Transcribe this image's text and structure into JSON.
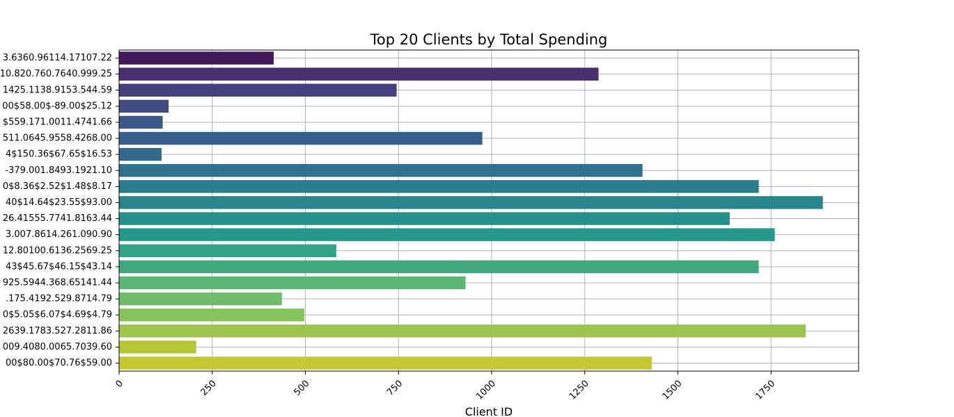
{
  "chart_data": {
    "type": "bar",
    "orientation": "horizontal",
    "title": "Top 20 Clients by Total Spending",
    "xlabel": "Client ID",
    "ylabel": "",
    "xlim": [
      0,
      1985
    ],
    "x_ticks": [
      "0",
      "250",
      "500",
      "750",
      "1000",
      "1250",
      "1500",
      "1750"
    ],
    "grid": true,
    "palette": "viridis",
    "categories": [
      "3.6360.96114.17107.22",
      "10.820.760.7640.999.25",
      "1425.1138.9153.544.59",
      "00$58.00$-89.00$25.12",
      "$559.171.0011.4741.66",
      "511.0645.9558.4268.00",
      "4$150.36$67.65$16.53",
      "-379.001.8493.1921.10",
      "0$8.36$2.52$1.48$8.17",
      "40$14.64$23.55$93.00",
      "26.41555.7741.8163.44",
      "3.007.8614.261.090.90",
      "12.80100.6136.2569.25",
      "43$45.67$46.15$43.14",
      "925.5944.368.65141.44",
      ".175.4192.529.8714.79",
      "0$5.05$6.07$4.69$4.79",
      "2639.1783.527.2811.86",
      "009.4080.0065.7039.60",
      "00$80.00$70.76$59.00"
    ],
    "values": [
      415,
      1287,
      745,
      133,
      117,
      975,
      114,
      1405,
      1717,
      1889,
      1639,
      1760,
      583,
      1717,
      930,
      437,
      497,
      1843,
      207,
      1430
    ],
    "colors": [
      "#43175c",
      "#482f6e",
      "#463f7e",
      "#414a83",
      "#3a5987",
      "#355f8d",
      "#33698a",
      "#2f718e",
      "#2c7d8b",
      "#2a858d",
      "#26908c",
      "#24988a",
      "#2fa287",
      "#40aa7e",
      "#5bb575",
      "#6dbc6b",
      "#86c45d",
      "#9dc54d",
      "#b4c634",
      "#c4c632"
    ]
  }
}
